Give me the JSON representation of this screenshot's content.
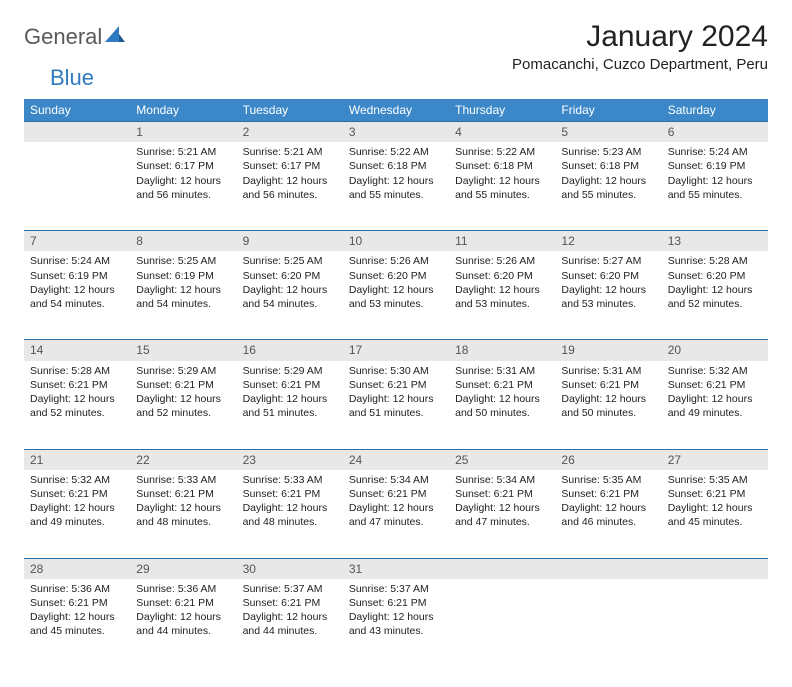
{
  "logo": {
    "general": "General",
    "blue": "Blue"
  },
  "title": "January 2024",
  "location": "Pomacanchi, Cuzco Department, Peru",
  "colors": {
    "header_bg": "#3b87c8",
    "header_fg": "#ffffff",
    "daynum_bg": "#e8e8e8",
    "rule": "#2f6fa8",
    "logo_gray": "#5a5a5a",
    "logo_blue": "#2f7ac0"
  },
  "day_labels": [
    "Sunday",
    "Monday",
    "Tuesday",
    "Wednesday",
    "Thursday",
    "Friday",
    "Saturday"
  ],
  "weeks": [
    [
      {
        "n": "",
        "sr": "",
        "ss": "",
        "dl": ""
      },
      {
        "n": "1",
        "sr": "Sunrise: 5:21 AM",
        "ss": "Sunset: 6:17 PM",
        "dl": "Daylight: 12 hours and 56 minutes."
      },
      {
        "n": "2",
        "sr": "Sunrise: 5:21 AM",
        "ss": "Sunset: 6:17 PM",
        "dl": "Daylight: 12 hours and 56 minutes."
      },
      {
        "n": "3",
        "sr": "Sunrise: 5:22 AM",
        "ss": "Sunset: 6:18 PM",
        "dl": "Daylight: 12 hours and 55 minutes."
      },
      {
        "n": "4",
        "sr": "Sunrise: 5:22 AM",
        "ss": "Sunset: 6:18 PM",
        "dl": "Daylight: 12 hours and 55 minutes."
      },
      {
        "n": "5",
        "sr": "Sunrise: 5:23 AM",
        "ss": "Sunset: 6:18 PM",
        "dl": "Daylight: 12 hours and 55 minutes."
      },
      {
        "n": "6",
        "sr": "Sunrise: 5:24 AM",
        "ss": "Sunset: 6:19 PM",
        "dl": "Daylight: 12 hours and 55 minutes."
      }
    ],
    [
      {
        "n": "7",
        "sr": "Sunrise: 5:24 AM",
        "ss": "Sunset: 6:19 PM",
        "dl": "Daylight: 12 hours and 54 minutes."
      },
      {
        "n": "8",
        "sr": "Sunrise: 5:25 AM",
        "ss": "Sunset: 6:19 PM",
        "dl": "Daylight: 12 hours and 54 minutes."
      },
      {
        "n": "9",
        "sr": "Sunrise: 5:25 AM",
        "ss": "Sunset: 6:20 PM",
        "dl": "Daylight: 12 hours and 54 minutes."
      },
      {
        "n": "10",
        "sr": "Sunrise: 5:26 AM",
        "ss": "Sunset: 6:20 PM",
        "dl": "Daylight: 12 hours and 53 minutes."
      },
      {
        "n": "11",
        "sr": "Sunrise: 5:26 AM",
        "ss": "Sunset: 6:20 PM",
        "dl": "Daylight: 12 hours and 53 minutes."
      },
      {
        "n": "12",
        "sr": "Sunrise: 5:27 AM",
        "ss": "Sunset: 6:20 PM",
        "dl": "Daylight: 12 hours and 53 minutes."
      },
      {
        "n": "13",
        "sr": "Sunrise: 5:28 AM",
        "ss": "Sunset: 6:20 PM",
        "dl": "Daylight: 12 hours and 52 minutes."
      }
    ],
    [
      {
        "n": "14",
        "sr": "Sunrise: 5:28 AM",
        "ss": "Sunset: 6:21 PM",
        "dl": "Daylight: 12 hours and 52 minutes."
      },
      {
        "n": "15",
        "sr": "Sunrise: 5:29 AM",
        "ss": "Sunset: 6:21 PM",
        "dl": "Daylight: 12 hours and 52 minutes."
      },
      {
        "n": "16",
        "sr": "Sunrise: 5:29 AM",
        "ss": "Sunset: 6:21 PM",
        "dl": "Daylight: 12 hours and 51 minutes."
      },
      {
        "n": "17",
        "sr": "Sunrise: 5:30 AM",
        "ss": "Sunset: 6:21 PM",
        "dl": "Daylight: 12 hours and 51 minutes."
      },
      {
        "n": "18",
        "sr": "Sunrise: 5:31 AM",
        "ss": "Sunset: 6:21 PM",
        "dl": "Daylight: 12 hours and 50 minutes."
      },
      {
        "n": "19",
        "sr": "Sunrise: 5:31 AM",
        "ss": "Sunset: 6:21 PM",
        "dl": "Daylight: 12 hours and 50 minutes."
      },
      {
        "n": "20",
        "sr": "Sunrise: 5:32 AM",
        "ss": "Sunset: 6:21 PM",
        "dl": "Daylight: 12 hours and 49 minutes."
      }
    ],
    [
      {
        "n": "21",
        "sr": "Sunrise: 5:32 AM",
        "ss": "Sunset: 6:21 PM",
        "dl": "Daylight: 12 hours and 49 minutes."
      },
      {
        "n": "22",
        "sr": "Sunrise: 5:33 AM",
        "ss": "Sunset: 6:21 PM",
        "dl": "Daylight: 12 hours and 48 minutes."
      },
      {
        "n": "23",
        "sr": "Sunrise: 5:33 AM",
        "ss": "Sunset: 6:21 PM",
        "dl": "Daylight: 12 hours and 48 minutes."
      },
      {
        "n": "24",
        "sr": "Sunrise: 5:34 AM",
        "ss": "Sunset: 6:21 PM",
        "dl": "Daylight: 12 hours and 47 minutes."
      },
      {
        "n": "25",
        "sr": "Sunrise: 5:34 AM",
        "ss": "Sunset: 6:21 PM",
        "dl": "Daylight: 12 hours and 47 minutes."
      },
      {
        "n": "26",
        "sr": "Sunrise: 5:35 AM",
        "ss": "Sunset: 6:21 PM",
        "dl": "Daylight: 12 hours and 46 minutes."
      },
      {
        "n": "27",
        "sr": "Sunrise: 5:35 AM",
        "ss": "Sunset: 6:21 PM",
        "dl": "Daylight: 12 hours and 45 minutes."
      }
    ],
    [
      {
        "n": "28",
        "sr": "Sunrise: 5:36 AM",
        "ss": "Sunset: 6:21 PM",
        "dl": "Daylight: 12 hours and 45 minutes."
      },
      {
        "n": "29",
        "sr": "Sunrise: 5:36 AM",
        "ss": "Sunset: 6:21 PM",
        "dl": "Daylight: 12 hours and 44 minutes."
      },
      {
        "n": "30",
        "sr": "Sunrise: 5:37 AM",
        "ss": "Sunset: 6:21 PM",
        "dl": "Daylight: 12 hours and 44 minutes."
      },
      {
        "n": "31",
        "sr": "Sunrise: 5:37 AM",
        "ss": "Sunset: 6:21 PM",
        "dl": "Daylight: 12 hours and 43 minutes."
      },
      {
        "n": "",
        "sr": "",
        "ss": "",
        "dl": ""
      },
      {
        "n": "",
        "sr": "",
        "ss": "",
        "dl": ""
      },
      {
        "n": "",
        "sr": "",
        "ss": "",
        "dl": ""
      }
    ]
  ]
}
